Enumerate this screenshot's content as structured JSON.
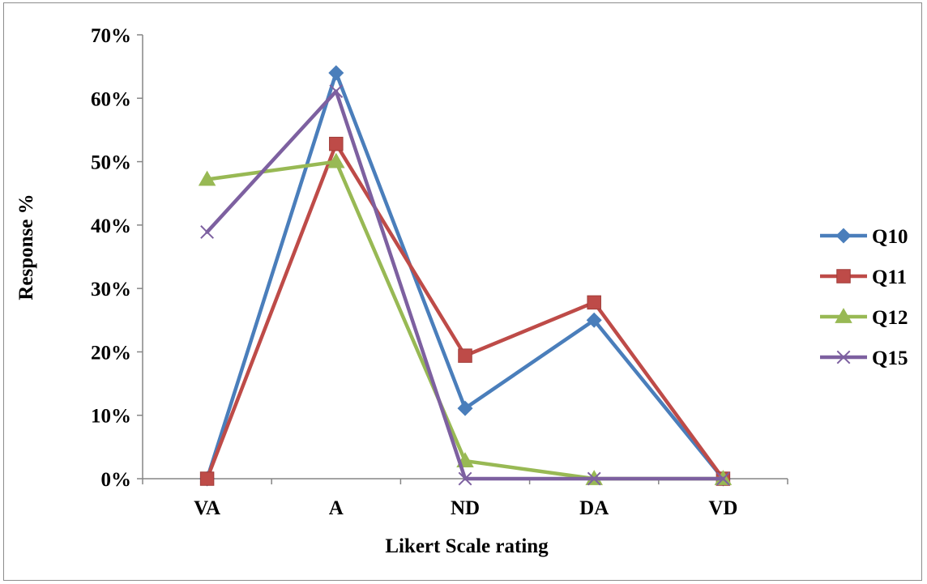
{
  "chart_data": {
    "type": "line",
    "title": "",
    "xlabel": "Likert Scale rating",
    "ylabel": "Response %",
    "categories": [
      "VA",
      "A",
      "ND",
      "DA",
      "VD"
    ],
    "ylim": [
      0,
      70
    ],
    "yticks": [
      "0%",
      "10%",
      "20%",
      "30%",
      "40%",
      "50%",
      "60%",
      "70%"
    ],
    "ytick_values": [
      0,
      10,
      20,
      30,
      40,
      50,
      60,
      70
    ],
    "grid": false,
    "legend_position": "right",
    "series": [
      {
        "name": "Q10",
        "color": "#4a7ebb",
        "marker": "diamond",
        "values": [
          0,
          64,
          11.1,
          25,
          0
        ]
      },
      {
        "name": "Q11",
        "color": "#be4b48",
        "marker": "square",
        "values": [
          0,
          52.8,
          19.4,
          27.8,
          0
        ]
      },
      {
        "name": "Q12",
        "color": "#98b954",
        "marker": "triangle",
        "values": [
          47.2,
          50,
          2.8,
          0,
          0
        ]
      },
      {
        "name": "Q15",
        "color": "#7d60a0",
        "marker": "x",
        "values": [
          38.9,
          61.1,
          0,
          0,
          0
        ]
      }
    ]
  }
}
